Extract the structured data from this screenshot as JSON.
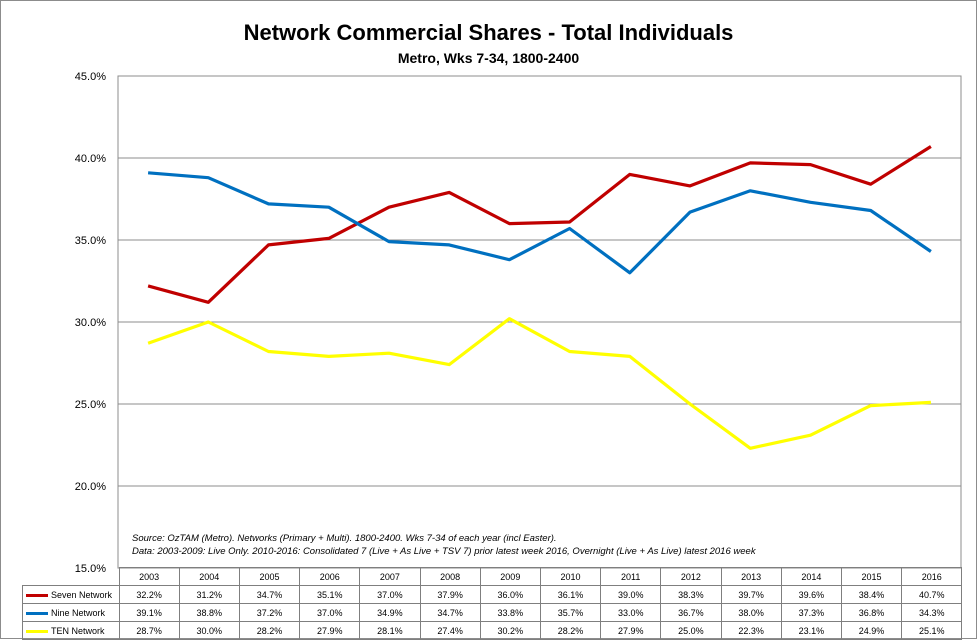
{
  "title": "Network Commercial Shares - Total Individuals",
  "subtitle": "Metro, Wks 7-34, 1800-2400",
  "notes": {
    "line1": "Source: OzTAM (Metro). Networks (Primary + Multi). 1800-2400. Wks 7-34 of each year (incl Easter).",
    "line2": "Data: 2003-2009: Live Only. 2010-2016: Consolidated 7 (Live + As Live + TSV 7) prior latest week 2016, Overnight (Live + As Live) latest 2016 week"
  },
  "chart_data": {
    "type": "line",
    "title": "Network Commercial Shares - Total Individuals",
    "subtitle": "Metro, Wks 7-34, 1800-2400",
    "categories": [
      "2003",
      "2004",
      "2005",
      "2006",
      "2007",
      "2008",
      "2009",
      "2010",
      "2011",
      "2012",
      "2013",
      "2014",
      "2015",
      "2016"
    ],
    "ylim": [
      15.0,
      45.0
    ],
    "yticks": [
      "45.0%",
      "40.0%",
      "35.0%",
      "30.0%",
      "25.0%",
      "20.0%",
      "15.0%"
    ],
    "grid": true,
    "legend": "data-table",
    "series": [
      {
        "name": "Seven Network",
        "color": "#c00000",
        "values": [
          32.2,
          31.2,
          34.7,
          35.1,
          37.0,
          37.9,
          36.0,
          36.1,
          39.0,
          38.3,
          39.7,
          39.6,
          38.4,
          40.7
        ],
        "labels": [
          "32.2%",
          "31.2%",
          "34.7%",
          "35.1%",
          "37.0%",
          "37.9%",
          "36.0%",
          "36.1%",
          "39.0%",
          "38.3%",
          "39.7%",
          "39.6%",
          "38.4%",
          "40.7%"
        ]
      },
      {
        "name": "Nine Network",
        "color": "#0070c0",
        "values": [
          39.1,
          38.8,
          37.2,
          37.0,
          34.9,
          34.7,
          33.8,
          35.7,
          33.0,
          36.7,
          38.0,
          37.3,
          36.8,
          34.3
        ],
        "labels": [
          "39.1%",
          "38.8%",
          "37.2%",
          "37.0%",
          "34.9%",
          "34.7%",
          "33.8%",
          "35.7%",
          "33.0%",
          "36.7%",
          "38.0%",
          "37.3%",
          "36.8%",
          "34.3%"
        ]
      },
      {
        "name": "TEN Network",
        "color": "#ffff00",
        "values": [
          28.7,
          30.0,
          28.2,
          27.9,
          28.1,
          27.4,
          30.2,
          28.2,
          27.9,
          25.0,
          22.3,
          23.1,
          24.9,
          25.1
        ],
        "labels": [
          "28.7%",
          "30.0%",
          "28.2%",
          "27.9%",
          "28.1%",
          "27.4%",
          "30.2%",
          "28.2%",
          "27.9%",
          "25.0%",
          "22.3%",
          "23.1%",
          "24.9%",
          "25.1%"
        ]
      }
    ]
  }
}
